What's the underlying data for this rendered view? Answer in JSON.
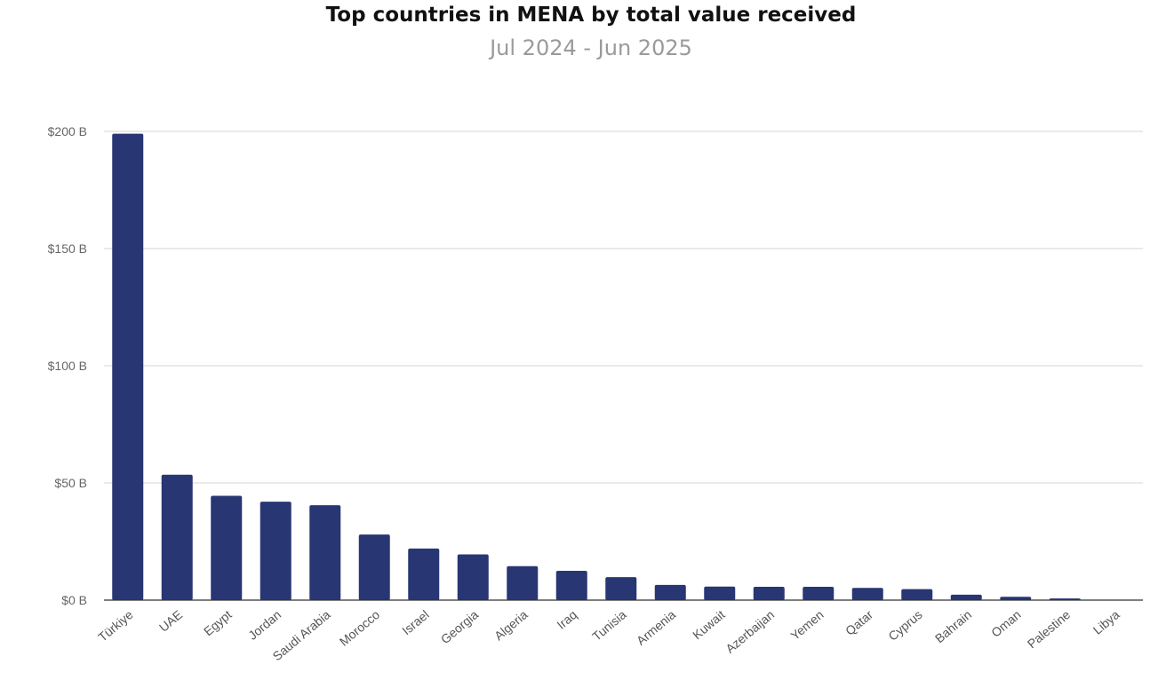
{
  "chart_data": {
    "type": "bar",
    "title": "Top countries in MENA by total value received",
    "subtitle": "Jul 2024 - Jun 2025",
    "categories": [
      "Türkiye",
      "UAE",
      "Egypt",
      "Jordan",
      "Saudi Arabia",
      "Morocco",
      "Israel",
      "Georgia",
      "Algeria",
      "Iraq",
      "Tunisia",
      "Armenia",
      "Kuwait",
      "Azerbaijan",
      "Yemen",
      "Qatar",
      "Cyprus",
      "Bahrain",
      "Oman",
      "Palestine",
      "Libya"
    ],
    "values": [
      199,
      53.5,
      44.5,
      42,
      40.5,
      28,
      22,
      19.5,
      14.5,
      12.5,
      9.8,
      6.5,
      5.8,
      5.7,
      5.7,
      5.2,
      4.7,
      2.3,
      1.4,
      0.7,
      0.1
    ],
    "unit": "billion USD",
    "ylim": [
      0,
      200
    ],
    "yticks": [
      0,
      50,
      100,
      150,
      200
    ],
    "ytick_labels": [
      "$0 B",
      "$50 B",
      "$100 B",
      "$150 B",
      "$200 B"
    ],
    "grid": true,
    "legend": "none",
    "bar_color": "#283673"
  }
}
